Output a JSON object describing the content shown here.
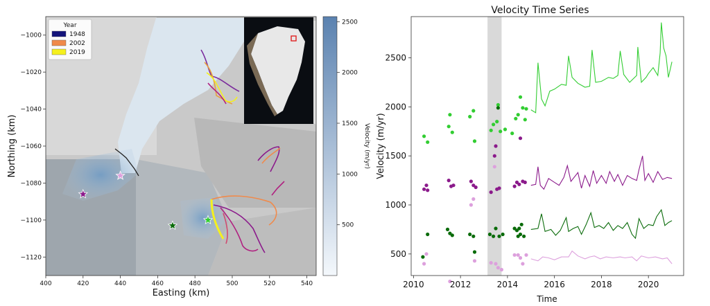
{
  "chart_data": [
    {
      "type": "map",
      "xlabel": "Easting (km)",
      "ylabel": "Northing (km)",
      "xlim": [
        400,
        545
      ],
      "ylim": [
        -1130,
        -990
      ],
      "x_ticks": [
        400,
        420,
        440,
        460,
        480,
        500,
        520,
        540
      ],
      "y_ticks": [
        -1120,
        -1100,
        -1080,
        -1060,
        -1040,
        -1020,
        -1000
      ],
      "legend": {
        "title": "Year",
        "placement": "top-left",
        "entries": [
          {
            "label": "1948",
            "color": "#14147a"
          },
          {
            "label": "2002",
            "color": "#f08a4b"
          },
          {
            "label": "2019",
            "color": "#f5f01e"
          }
        ]
      },
      "colorbar": {
        "label": "Velocity (m/yr)",
        "range": [
          0,
          2550
        ],
        "ticks": [
          500,
          1000,
          1500,
          2000,
          2500
        ],
        "color_low": "#f4f8fc",
        "color_high": "#5b82b0"
      },
      "stars": [
        {
          "x": 420,
          "y": -1086,
          "color": "#8b1a8b"
        },
        {
          "x": 440,
          "y": -1076,
          "color": "#dda0dd"
        },
        {
          "x": 468,
          "y": -1103,
          "color": "#0a6b0a"
        },
        {
          "x": 487,
          "y": -1100,
          "color": "#32cd32"
        }
      ],
      "inset": "greenland-locator-map"
    },
    {
      "type": "scatter+line",
      "title": "Velocity Time Series",
      "xlabel": "Time",
      "ylabel": "Velocity (m/yr)",
      "xlim": [
        2009.9,
        2021.5
      ],
      "ylim": [
        280,
        2920
      ],
      "x_ticks": [
        2010,
        2012,
        2014,
        2016,
        2018,
        2020
      ],
      "y_ticks": [
        500,
        1000,
        1500,
        2000,
        2500
      ],
      "shaded_span": [
        2013.15,
        2013.75
      ],
      "series": [
        {
          "color": "#32cd32",
          "points": [
            [
              2010.45,
              1700
            ],
            [
              2010.6,
              1640
            ],
            [
              2011.5,
              1800
            ],
            [
              2011.55,
              1920
            ],
            [
              2011.65,
              1740
            ],
            [
              2012.4,
              1900
            ],
            [
              2012.55,
              1960
            ],
            [
              2012.6,
              1650
            ],
            [
              2013.3,
              1760
            ],
            [
              2013.4,
              1820
            ],
            [
              2013.55,
              1850
            ],
            [
              2013.6,
              2020
            ],
            [
              2013.7,
              1750
            ],
            [
              2013.9,
              1770
            ],
            [
              2014.2,
              1730
            ],
            [
              2014.35,
              1880
            ],
            [
              2014.45,
              1920
            ],
            [
              2014.55,
              2100
            ],
            [
              2014.65,
              1990
            ],
            [
              2014.75,
              1870
            ],
            [
              2014.8,
              1980
            ]
          ],
          "line": [
            [
              2015.0,
              1970
            ],
            [
              2015.2,
              1940
            ],
            [
              2015.3,
              2450
            ],
            [
              2015.45,
              2080
            ],
            [
              2015.6,
              2010
            ],
            [
              2015.8,
              2160
            ],
            [
              2016.0,
              2180
            ],
            [
              2016.3,
              2230
            ],
            [
              2016.5,
              2220
            ],
            [
              2016.6,
              2520
            ],
            [
              2016.75,
              2300
            ],
            [
              2017.0,
              2240
            ],
            [
              2017.3,
              2200
            ],
            [
              2017.5,
              2210
            ],
            [
              2017.6,
              2580
            ],
            [
              2017.75,
              2250
            ],
            [
              2018.0,
              2260
            ],
            [
              2018.3,
              2300
            ],
            [
              2018.5,
              2290
            ],
            [
              2018.7,
              2320
            ],
            [
              2018.8,
              2570
            ],
            [
              2018.95,
              2330
            ],
            [
              2019.2,
              2250
            ],
            [
              2019.5,
              2320
            ],
            [
              2019.55,
              2610
            ],
            [
              2019.7,
              2250
            ],
            [
              2019.9,
              2300
            ],
            [
              2020.0,
              2340
            ],
            [
              2020.2,
              2400
            ],
            [
              2020.4,
              2320
            ],
            [
              2020.5,
              2550
            ],
            [
              2020.55,
              2860
            ],
            [
              2020.65,
              2600
            ],
            [
              2020.75,
              2520
            ],
            [
              2020.85,
              2300
            ],
            [
              2021.0,
              2460
            ]
          ]
        },
        {
          "color": "#8b1a8b",
          "points": [
            [
              2010.45,
              1160
            ],
            [
              2010.55,
              1200
            ],
            [
              2010.6,
              1150
            ],
            [
              2011.5,
              1250
            ],
            [
              2011.6,
              1190
            ],
            [
              2011.7,
              1200
            ],
            [
              2012.45,
              1240
            ],
            [
              2012.55,
              1200
            ],
            [
              2012.65,
              1180
            ],
            [
              2013.3,
              1130
            ],
            [
              2013.45,
              1500
            ],
            [
              2013.5,
              1600
            ],
            [
              2013.55,
              1160
            ],
            [
              2013.65,
              1170
            ],
            [
              2014.3,
              1190
            ],
            [
              2014.4,
              1230
            ],
            [
              2014.5,
              1210
            ],
            [
              2014.55,
              1680
            ],
            [
              2014.65,
              1240
            ],
            [
              2014.75,
              1230
            ]
          ],
          "line": [
            [
              2015.0,
              1200
            ],
            [
              2015.2,
              1210
            ],
            [
              2015.3,
              1390
            ],
            [
              2015.4,
              1200
            ],
            [
              2015.55,
              1160
            ],
            [
              2015.75,
              1270
            ],
            [
              2016.0,
              1230
            ],
            [
              2016.2,
              1200
            ],
            [
              2016.4,
              1280
            ],
            [
              2016.55,
              1400
            ],
            [
              2016.7,
              1240
            ],
            [
              2017.0,
              1330
            ],
            [
              2017.15,
              1170
            ],
            [
              2017.3,
              1300
            ],
            [
              2017.5,
              1190
            ],
            [
              2017.65,
              1350
            ],
            [
              2017.8,
              1220
            ],
            [
              2018.0,
              1300
            ],
            [
              2018.2,
              1220
            ],
            [
              2018.35,
              1340
            ],
            [
              2018.55,
              1240
            ],
            [
              2018.7,
              1310
            ],
            [
              2018.9,
              1200
            ],
            [
              2019.1,
              1300
            ],
            [
              2019.3,
              1270
            ],
            [
              2019.5,
              1250
            ],
            [
              2019.6,
              1360
            ],
            [
              2019.75,
              1500
            ],
            [
              2019.85,
              1250
            ],
            [
              2020.0,
              1320
            ],
            [
              2020.2,
              1230
            ],
            [
              2020.4,
              1340
            ],
            [
              2020.6,
              1260
            ],
            [
              2020.8,
              1280
            ],
            [
              2021.0,
              1270
            ]
          ]
        },
        {
          "color": "#0a6b0a",
          "points": [
            [
              2010.4,
              470
            ],
            [
              2010.6,
              700
            ],
            [
              2011.45,
              750
            ],
            [
              2011.55,
              710
            ],
            [
              2011.65,
              690
            ],
            [
              2012.4,
              700
            ],
            [
              2012.55,
              680
            ],
            [
              2012.6,
              520
            ],
            [
              2013.25,
              700
            ],
            [
              2013.4,
              680
            ],
            [
              2013.5,
              760
            ],
            [
              2013.6,
              1990
            ],
            [
              2013.65,
              680
            ],
            [
              2013.8,
              700
            ],
            [
              2014.3,
              760
            ],
            [
              2014.4,
              740
            ],
            [
              2014.45,
              680
            ],
            [
              2014.5,
              760
            ],
            [
              2014.55,
              700
            ],
            [
              2014.6,
              800
            ],
            [
              2014.7,
              680
            ]
          ],
          "line": [
            [
              2015.0,
              750
            ],
            [
              2015.3,
              760
            ],
            [
              2015.45,
              910
            ],
            [
              2015.6,
              730
            ],
            [
              2015.85,
              750
            ],
            [
              2016.05,
              690
            ],
            [
              2016.25,
              740
            ],
            [
              2016.5,
              870
            ],
            [
              2016.6,
              730
            ],
            [
              2016.8,
              760
            ],
            [
              2017.0,
              780
            ],
            [
              2017.15,
              700
            ],
            [
              2017.35,
              800
            ],
            [
              2017.55,
              920
            ],
            [
              2017.7,
              770
            ],
            [
              2017.9,
              790
            ],
            [
              2018.1,
              760
            ],
            [
              2018.3,
              820
            ],
            [
              2018.5,
              740
            ],
            [
              2018.7,
              790
            ],
            [
              2018.9,
              760
            ],
            [
              2019.1,
              820
            ],
            [
              2019.3,
              700
            ],
            [
              2019.45,
              660
            ],
            [
              2019.6,
              860
            ],
            [
              2019.8,
              760
            ],
            [
              2020.0,
              800
            ],
            [
              2020.2,
              790
            ],
            [
              2020.35,
              880
            ],
            [
              2020.55,
              950
            ],
            [
              2020.7,
              790
            ],
            [
              2020.85,
              820
            ],
            [
              2021.0,
              840
            ]
          ]
        },
        {
          "color": "#dda0dd",
          "points": [
            [
              2010.45,
              400
            ],
            [
              2010.55,
              500
            ],
            [
              2011.55,
              220
            ],
            [
              2012.45,
              1000
            ],
            [
              2012.55,
              1060
            ],
            [
              2012.6,
              430
            ],
            [
              2013.3,
              410
            ],
            [
              2013.45,
              1390
            ],
            [
              2013.5,
              400
            ],
            [
              2013.6,
              360
            ],
            [
              2013.75,
              340
            ],
            [
              2014.3,
              490
            ],
            [
              2014.45,
              490
            ],
            [
              2014.55,
              460
            ],
            [
              2014.65,
              400
            ],
            [
              2014.8,
              490
            ]
          ],
          "line": [
            [
              2015.0,
              450
            ],
            [
              2015.3,
              430
            ],
            [
              2015.5,
              470
            ],
            [
              2015.75,
              460
            ],
            [
              2016.0,
              440
            ],
            [
              2016.3,
              470
            ],
            [
              2016.6,
              470
            ],
            [
              2016.75,
              530
            ],
            [
              2017.0,
              480
            ],
            [
              2017.3,
              450
            ],
            [
              2017.5,
              470
            ],
            [
              2017.7,
              480
            ],
            [
              2017.95,
              450
            ],
            [
              2018.2,
              470
            ],
            [
              2018.5,
              460
            ],
            [
              2018.8,
              470
            ],
            [
              2019.0,
              460
            ],
            [
              2019.3,
              470
            ],
            [
              2019.5,
              430
            ],
            [
              2019.7,
              480
            ],
            [
              2020.0,
              460
            ],
            [
              2020.3,
              470
            ],
            [
              2020.6,
              450
            ],
            [
              2020.8,
              460
            ],
            [
              2021.0,
              400
            ]
          ]
        }
      ]
    }
  ]
}
